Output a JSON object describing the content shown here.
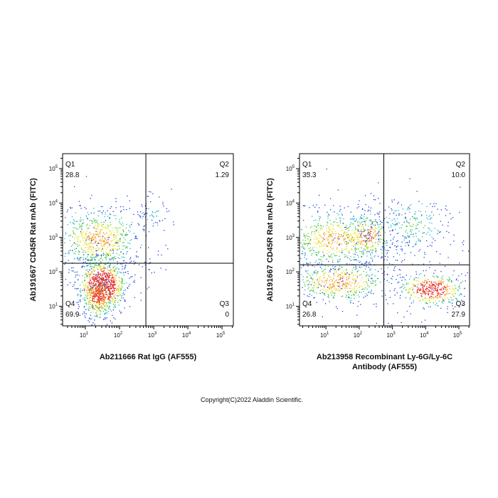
{
  "chart_data": [
    {
      "type": "quadrant",
      "log_scale": true,
      "x_label": [
        "Ab211666 Rat IgG (AF555)"
      ],
      "y_label": "Ab191667 CD45R Rat mAb (FITC)",
      "xlim": [
        2.15,
        215000
      ],
      "ylim": [
        2.7,
        272000
      ],
      "xticks": [
        {
          "value": 10,
          "label": "10",
          "sup": "1"
        },
        {
          "value": 100,
          "label": "10",
          "sup": "2"
        },
        {
          "value": 1000,
          "label": "10",
          "sup": "3"
        },
        {
          "value": 10000,
          "label": "10",
          "sup": "4"
        },
        {
          "value": 100000,
          "label": "10",
          "sup": "5"
        }
      ],
      "yticks": [
        {
          "value": 10,
          "label": "10",
          "sup": "1"
        },
        {
          "value": 100,
          "label": "10",
          "sup": "2"
        },
        {
          "value": 1000,
          "label": "10",
          "sup": "3"
        },
        {
          "value": 10000,
          "label": "10",
          "sup": "4"
        },
        {
          "value": 100000,
          "label": "10",
          "sup": "5"
        }
      ],
      "gate_x": 590,
      "gate_y": 178,
      "quadrants": [
        {
          "name": "Q1",
          "value": 28.8
        },
        {
          "name": "Q2",
          "value": 1.29
        },
        {
          "name": "Q3",
          "value": 0
        },
        {
          "name": "Q4",
          "value": 69.9
        }
      ]
    },
    {
      "type": "quadrant",
      "log_scale": true,
      "x_label": [
        "Ab213958 Recombinant Ly-6G/Ly-6C",
        "Antibody (AF555)"
      ],
      "y_label": "Ab191667 CD45R Rat mAb (FITC)",
      "xlim": [
        1.6,
        209000
      ],
      "ylim": [
        2.7,
        272000
      ],
      "xticks": [
        {
          "value": 10,
          "label": "10",
          "sup": "1"
        },
        {
          "value": 100,
          "label": "10",
          "sup": "2"
        },
        {
          "value": 1000,
          "label": "10",
          "sup": "3"
        },
        {
          "value": 10000,
          "label": "10",
          "sup": "4"
        },
        {
          "value": 100000,
          "label": "10",
          "sup": "5"
        }
      ],
      "yticks": [
        {
          "value": 10,
          "label": "10",
          "sup": "1"
        },
        {
          "value": 100,
          "label": "10",
          "sup": "2"
        },
        {
          "value": 1000,
          "label": "10",
          "sup": "3"
        },
        {
          "value": 10000,
          "label": "10",
          "sup": "4"
        },
        {
          "value": 100000,
          "label": "10",
          "sup": "5"
        }
      ],
      "gate_x": 550,
      "gate_y": 160,
      "quadrants": [
        {
          "name": "Q1",
          "value": 35.3
        },
        {
          "name": "Q2",
          "value": 10,
          "value_label": "10.0"
        },
        {
          "name": "Q3",
          "value": 27.9
        },
        {
          "name": "Q4",
          "value": 26.8
        }
      ]
    }
  ],
  "copyright": "Copyright(C)2022 Aladdin Scientific."
}
